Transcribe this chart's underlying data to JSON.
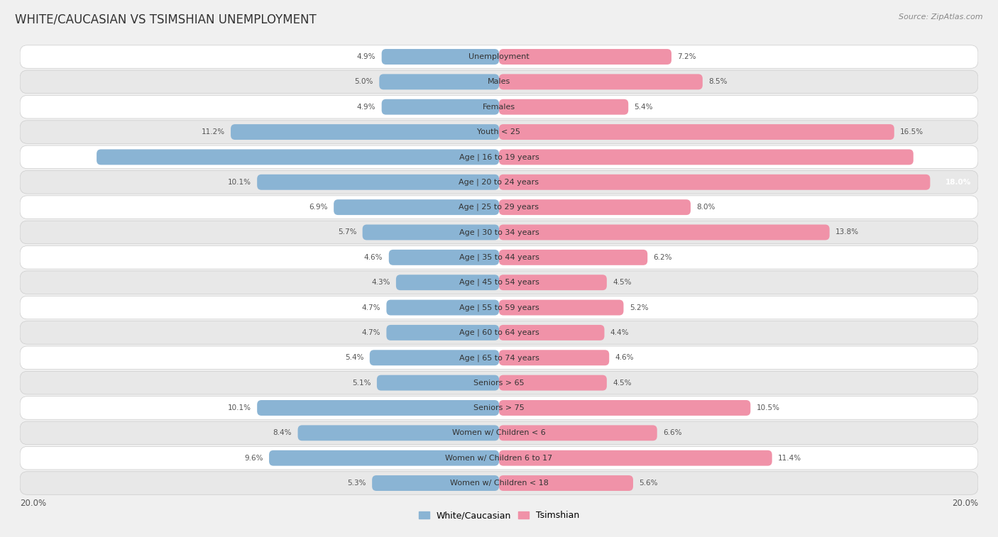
{
  "title": "WHITE/CAUCASIAN VS TSIMSHIAN UNEMPLOYMENT",
  "source": "Source: ZipAtlas.com",
  "categories": [
    "Unemployment",
    "Males",
    "Females",
    "Youth < 25",
    "Age | 16 to 19 years",
    "Age | 20 to 24 years",
    "Age | 25 to 29 years",
    "Age | 30 to 34 years",
    "Age | 35 to 44 years",
    "Age | 45 to 54 years",
    "Age | 55 to 59 years",
    "Age | 60 to 64 years",
    "Age | 65 to 74 years",
    "Seniors > 65",
    "Seniors > 75",
    "Women w/ Children < 6",
    "Women w/ Children 6 to 17",
    "Women w/ Children < 18"
  ],
  "white_values": [
    4.9,
    5.0,
    4.9,
    11.2,
    16.8,
    10.1,
    6.9,
    5.7,
    4.6,
    4.3,
    4.7,
    4.7,
    5.4,
    5.1,
    10.1,
    8.4,
    9.6,
    5.3
  ],
  "tsimshian_values": [
    7.2,
    8.5,
    5.4,
    16.5,
    17.3,
    18.0,
    8.0,
    13.8,
    6.2,
    4.5,
    5.2,
    4.4,
    4.6,
    4.5,
    10.5,
    6.6,
    11.4,
    5.6
  ],
  "white_color": "#8ab4d4",
  "tsimshian_color": "#f092a8",
  "axis_max": 20.0,
  "background_color": "#f0f0f0",
  "row_bg_white": "#ffffff",
  "row_bg_gray": "#e8e8e8",
  "title_fontsize": 12,
  "label_fontsize": 8.0,
  "value_fontsize": 7.5,
  "source_fontsize": 8.0
}
